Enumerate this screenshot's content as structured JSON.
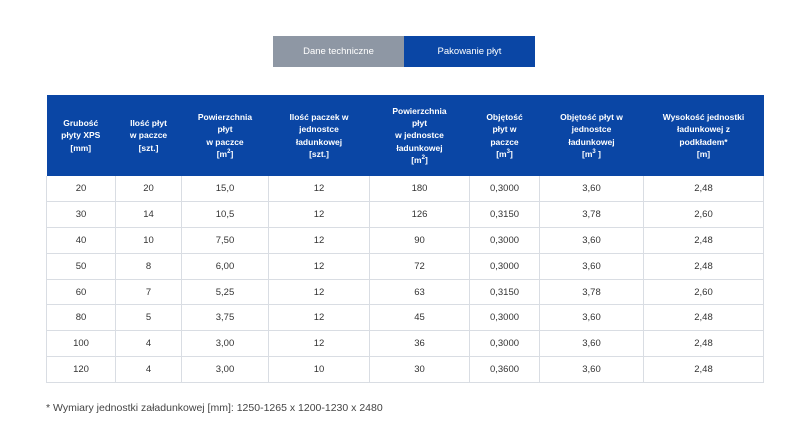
{
  "tabs": [
    {
      "label": "Dane techniczne",
      "active": false
    },
    {
      "label": "Pakowanie płyt",
      "active": true
    }
  ],
  "table": {
    "headers": [
      [
        "Grubość",
        "płyty XPS",
        "[mm]"
      ],
      [
        "Ilość płyt",
        "w paczce",
        "[szt.]"
      ],
      [
        "Powierzchnia",
        "płyt",
        "w paczce",
        "[m",
        "2",
        "]"
      ],
      [
        "Ilość paczek w",
        "jednostce",
        "ładunkowej",
        "[szt.]"
      ],
      [
        "Powierzchnia",
        "płyt",
        "w jednostce",
        "ładunkowej",
        "[m",
        "2",
        "]"
      ],
      [
        "Objętość",
        "płyt w",
        "paczce",
        "[m",
        "3",
        "]"
      ],
      [
        "Objętość płyt w",
        "jednostce",
        "ładunkowej",
        "[m",
        "3",
        " ]"
      ],
      [
        "Wysokość jednostki",
        "ładunkowej z",
        "podkładem*",
        "[m]"
      ]
    ],
    "rows": [
      [
        "20",
        "20",
        "15,0",
        "12",
        "180",
        "0,3000",
        "3,60",
        "2,48"
      ],
      [
        "30",
        "14",
        "10,5",
        "12",
        "126",
        "0,3150",
        "3,78",
        "2,60"
      ],
      [
        "40",
        "10",
        "7,50",
        "12",
        "90",
        "0,3000",
        "3,60",
        "2,48"
      ],
      [
        "50",
        "8",
        "6,00",
        "12",
        "72",
        "0,3000",
        "3,60",
        "2,48"
      ],
      [
        "60",
        "7",
        "5,25",
        "12",
        "63",
        "0,3150",
        "3,78",
        "2,60"
      ],
      [
        "80",
        "5",
        "3,75",
        "12",
        "45",
        "0,3000",
        "3,60",
        "2,48"
      ],
      [
        "100",
        "4",
        "3,00",
        "12",
        "36",
        "0,3000",
        "3,60",
        "2,48"
      ],
      [
        "120",
        "4",
        "3,00",
        "10",
        "30",
        "0,3600",
        "3,60",
        "2,48"
      ]
    ]
  },
  "footnote": "* Wymiary jednostki załadunkowej [mm]: 1250-1265 x 1200-1230 x 2480",
  "colors": {
    "accent": "#0a46a5",
    "inactive_tab": "#8e97a4"
  }
}
